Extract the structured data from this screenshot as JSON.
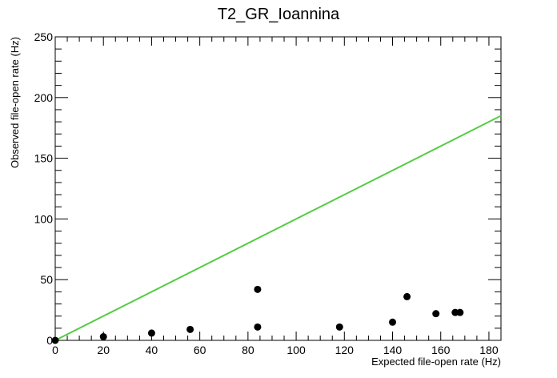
{
  "chart_data": {
    "type": "scatter",
    "title": "T2_GR_Ioannina",
    "xlabel": "Expected file-open rate (Hz)",
    "ylabel": "Observed file-open rate (Hz)",
    "xlim": [
      0,
      185
    ],
    "ylim": [
      0,
      250
    ],
    "x_ticks": [
      0,
      20,
      40,
      60,
      80,
      100,
      120,
      140,
      160,
      180
    ],
    "y_ticks": [
      0,
      50,
      100,
      150,
      200,
      250
    ],
    "grid": false,
    "series": [
      {
        "points": [
          {
            "x": 0,
            "y": 0
          },
          {
            "x": 20,
            "y": 3
          },
          {
            "x": 40,
            "y": 6
          },
          {
            "x": 56,
            "y": 9
          },
          {
            "x": 84,
            "y": 42
          },
          {
            "x": 84,
            "y": 11
          },
          {
            "x": 118,
            "y": 11
          },
          {
            "x": 140,
            "y": 15
          },
          {
            "x": 146,
            "y": 36
          },
          {
            "x": 158,
            "y": 22
          },
          {
            "x": 166,
            "y": 23
          },
          {
            "x": 168,
            "y": 23
          }
        ],
        "color": "#000000"
      }
    ],
    "reference_line": {
      "from": [
        0,
        0
      ],
      "to": [
        185,
        185
      ],
      "color": "#55cc44"
    }
  }
}
